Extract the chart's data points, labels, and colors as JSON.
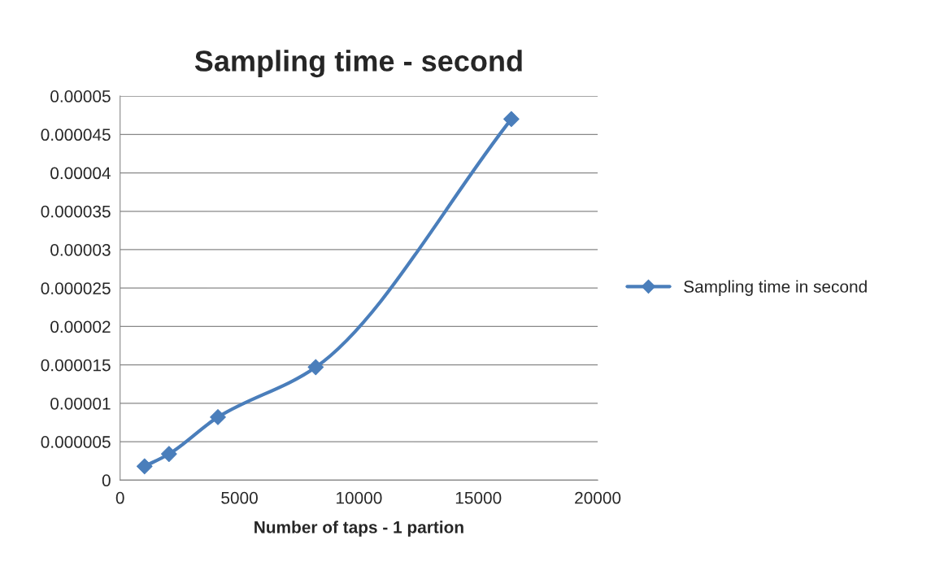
{
  "chart_data": {
    "type": "line",
    "title": "Sampling time - second",
    "xlabel": "Number of taps - 1 partion",
    "x": [
      1024,
      2048,
      4096,
      8192,
      16384
    ],
    "series": [
      {
        "name": "Sampling time in second",
        "color": "#4a7ebb",
        "values": [
          1.8e-06,
          3.4e-06,
          8.2e-06,
          1.47e-05,
          4.7e-05
        ]
      }
    ],
    "xlim": [
      0,
      20000
    ],
    "xticks": [
      0,
      5000,
      10000,
      15000,
      20000
    ],
    "ylim": [
      0,
      5e-05
    ],
    "yticks": [
      {
        "value": 0,
        "label": "0"
      },
      {
        "value": 5e-06,
        "label": "0.000005"
      },
      {
        "value": 1e-05,
        "label": "0.00001"
      },
      {
        "value": 1.5e-05,
        "label": "0.000015"
      },
      {
        "value": 2e-05,
        "label": "0.00002"
      },
      {
        "value": 2.5e-05,
        "label": "0.000025"
      },
      {
        "value": 3e-05,
        "label": "0.00003"
      },
      {
        "value": 3.5e-05,
        "label": "0.000035"
      },
      {
        "value": 4e-05,
        "label": "0.00004"
      },
      {
        "value": 4.5e-05,
        "label": "0.000045"
      },
      {
        "value": 5e-05,
        "label": "0.00005"
      }
    ],
    "grid": "y",
    "legend": "right",
    "marker": "diamond",
    "line_style": "solid"
  }
}
